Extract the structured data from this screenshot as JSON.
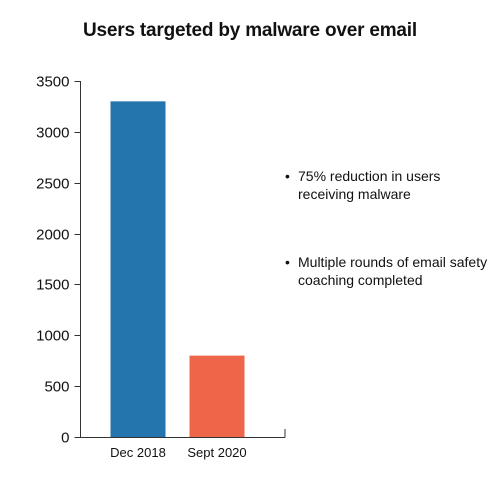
{
  "chart_data": {
    "type": "bar",
    "title": "Users targeted by malware over email",
    "categories": [
      "Dec 2018",
      "Sept 2020"
    ],
    "values": [
      3300,
      800
    ],
    "colors": [
      "#2475ad",
      "#ee6549"
    ],
    "ylim": [
      0,
      3500
    ],
    "yticks": [
      0,
      500,
      1000,
      1500,
      2000,
      2500,
      3000,
      3500
    ],
    "xlabel": "",
    "ylabel": "",
    "grid": false,
    "legend": "none"
  },
  "notes": {
    "bullet": "•",
    "items": [
      {
        "text": "75% reduction in users receiving malware"
      },
      {
        "text": "Multiple rounds of email safety coaching completed"
      }
    ]
  }
}
